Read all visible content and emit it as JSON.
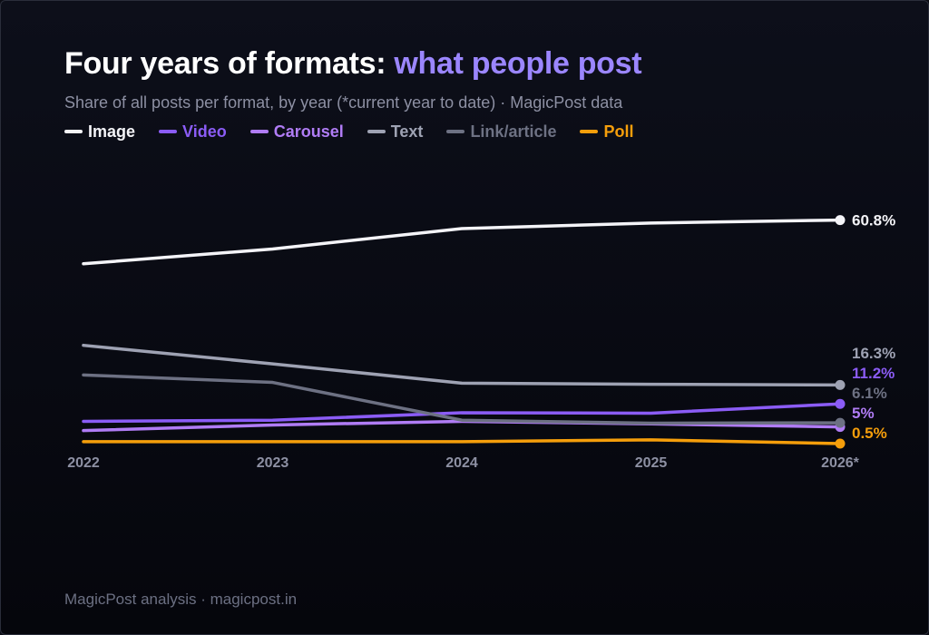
{
  "header": {
    "title_main": "Four years of formats: ",
    "title_accent": "what people post",
    "subtitle": "Share of all posts per format, by year (*current year to date) · MagicPost data"
  },
  "footer": {
    "text": "MagicPost analysis · magicpost.in"
  },
  "colors": {
    "background": "#0b0c14",
    "accent": "#9b86ff",
    "axis_text": "#8d90a3"
  },
  "chart_data": {
    "type": "line",
    "x": [
      "2022",
      "2023",
      "2024",
      "2025",
      "2026*"
    ],
    "ylim": [
      0,
      70
    ],
    "grid": false,
    "legend": "top-left",
    "series": [
      {
        "name": "Image",
        "color": "#f4f4f8",
        "values": [
          49.0,
          53.0,
          58.5,
          60.0,
          60.8
        ],
        "end_label": "60.8%"
      },
      {
        "name": "Video",
        "color": "#8b5cf6",
        "values": [
          6.5,
          6.8,
          8.8,
          8.7,
          11.2
        ],
        "end_label": "11.2%"
      },
      {
        "name": "Carousel",
        "color": "#b07cf5",
        "values": [
          4.0,
          5.5,
          6.5,
          5.8,
          5.0
        ],
        "end_label": "5%"
      },
      {
        "name": "Text",
        "color": "#9ea2b3",
        "values": [
          27.0,
          22.0,
          16.8,
          16.5,
          16.3
        ],
        "end_label": "16.3%"
      },
      {
        "name": "Link/article",
        "color": "#6d7183",
        "values": [
          19.0,
          17.0,
          6.8,
          6.0,
          6.1
        ],
        "end_label": "6.1%"
      },
      {
        "name": "Poll",
        "color": "#f59e0b",
        "values": [
          1.0,
          1.0,
          1.0,
          1.5,
          0.5
        ],
        "end_label": "0.5%"
      }
    ]
  }
}
